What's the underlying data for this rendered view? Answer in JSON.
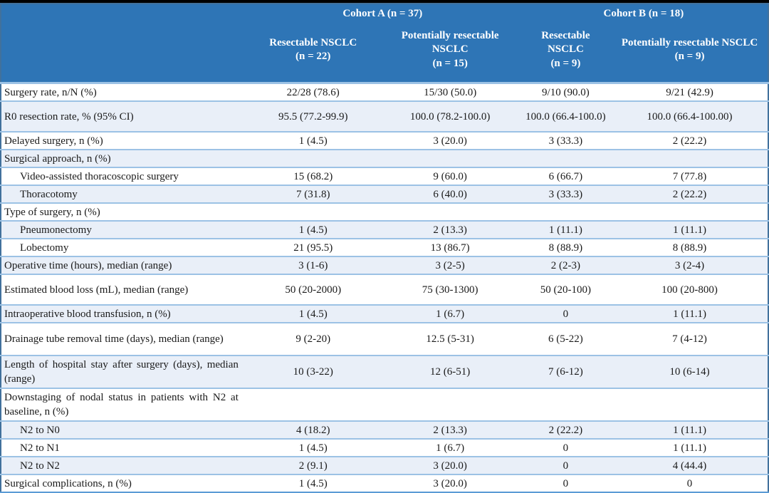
{
  "colors": {
    "header_bg": "#2E75B6",
    "header_text": "#FFFFFF",
    "shaded_row_bg": "#E9EFF8",
    "row_border": "#9CC2E5",
    "outer_border": "#41719C",
    "body_text": "#1A1A1A"
  },
  "table": {
    "header": {
      "cohort_a": "Cohort A (n = 37)",
      "cohort_b": "Cohort B (n = 18)",
      "subcolumns": [
        {
          "name": "Resectable NSCLC",
          "n": "(n = 22)"
        },
        {
          "name": "Potentially resectable NSCLC",
          "n": "(n = 15)"
        },
        {
          "name": "Resectable NSCLC",
          "n": "(n = 9)"
        },
        {
          "name": "Potentially resectable NSCLC",
          "n": "(n = 9)"
        }
      ]
    },
    "rows": [
      {
        "label": "Surgery rate, n/N (%)",
        "indent": false,
        "size": "normal",
        "values": [
          "22/28 (78.6)",
          "15/30 (50.0)",
          "9/10 (90.0)",
          "9/21 (42.9)"
        ]
      },
      {
        "label": "R0 resection rate, % (95% CI)",
        "indent": false,
        "size": "tall",
        "values": [
          "95.5 (77.2-99.9)",
          "100.0 (78.2-100.0)",
          "100.0 (66.4-100.0)",
          "100.0 (66.4-100.00)"
        ]
      },
      {
        "label": "Delayed surgery, n (%)",
        "indent": false,
        "size": "normal",
        "values": [
          "1 (4.5)",
          "3 (20.0)",
          "3 (33.3)",
          "2 (22.2)"
        ]
      },
      {
        "label": "Surgical approach, n (%)",
        "indent": false,
        "size": "normal",
        "values": null
      },
      {
        "label": "Video-assisted thoracoscopic surgery",
        "indent": true,
        "size": "normal",
        "values": [
          "15 (68.2)",
          "9 (60.0)",
          "6 (66.7)",
          "7 (77.8)"
        ]
      },
      {
        "label": "Thoracotomy",
        "indent": true,
        "size": "normal",
        "values": [
          "7 (31.8)",
          "6 (40.0)",
          "3 (33.3)",
          "2 (22.2)"
        ]
      },
      {
        "label": "Type of surgery, n (%)",
        "indent": false,
        "size": "normal",
        "values": null
      },
      {
        "label": "Pneumonectomy",
        "indent": true,
        "size": "normal",
        "values": [
          "1 (4.5)",
          "2 (13.3)",
          "1 (11.1)",
          "1 (11.1)"
        ]
      },
      {
        "label": "Lobectomy",
        "indent": true,
        "size": "normal",
        "values": [
          "21 (95.5)",
          "13 (86.7)",
          "8 (88.9)",
          "8 (88.9)"
        ]
      },
      {
        "label": "Operative time (hours), median (range)",
        "indent": false,
        "size": "normal",
        "values": [
          "3 (1-6)",
          "3 (2-5)",
          "2 (2-3)",
          "3 (2-4)"
        ]
      },
      {
        "label": "Estimated blood loss (mL), median (range)",
        "indent": false,
        "size": "tall",
        "values": [
          "50 (20-2000)",
          "75 (30-1300)",
          "50 (20-100)",
          "100 (20-800)"
        ]
      },
      {
        "label": "Intraoperative blood transfusion, n (%)",
        "indent": false,
        "size": "normal",
        "values": [
          "1 (4.5)",
          "1 (6.7)",
          "0",
          "1 (11.1)"
        ]
      },
      {
        "label": "Drainage tube removal time (days), median (range)",
        "indent": false,
        "size": "twoline",
        "values": [
          "9 (2-20)",
          "12.5 (5-31)",
          "6 (5-22)",
          "7 (4-12)"
        ]
      },
      {
        "label": "Length of hospital stay after surgery (days), median (range)",
        "indent": false,
        "size": "twoline",
        "values": [
          "10 (3-22)",
          "12 (6-51)",
          "7 (6-12)",
          "10 (6-14)"
        ]
      },
      {
        "label": "Downstaging of nodal status in patients with N2 at baseline, n (%)",
        "indent": false,
        "size": "twoline",
        "values": null
      },
      {
        "label": "N2 to N0",
        "indent": true,
        "size": "normal",
        "values": [
          "4 (18.2)",
          "2 (13.3)",
          "2 (22.2)",
          "1 (11.1)"
        ]
      },
      {
        "label": "N2 to N1",
        "indent": true,
        "size": "normal",
        "values": [
          "1 (4.5)",
          "1 (6.7)",
          "0",
          "1 (11.1)"
        ]
      },
      {
        "label": "N2 to N2",
        "indent": true,
        "size": "normal",
        "values": [
          "2 (9.1)",
          "3 (20.0)",
          "0",
          "4 (44.4)"
        ]
      },
      {
        "label": "Surgical complications, n (%)",
        "indent": false,
        "size": "normal",
        "values": [
          "1 (4.5)",
          "3 (20.0)",
          "0",
          "0"
        ]
      }
    ]
  }
}
